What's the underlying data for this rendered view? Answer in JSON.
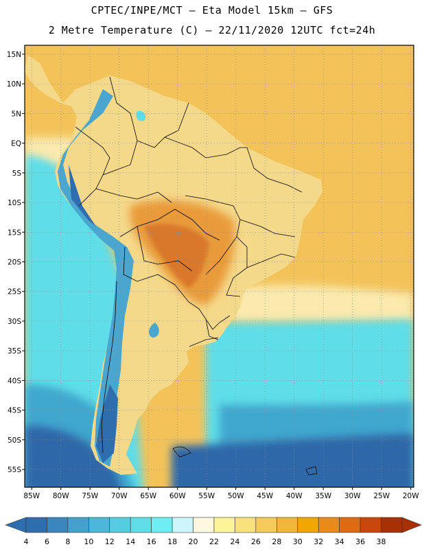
{
  "header": {
    "line1": "CPTEC/INPE/MCT –   Eta Model 15km – GFS",
    "line2": "2 Metre Temperature (C) – 22/11/2020 12UTC fct=24h"
  },
  "map": {
    "lat_ticks": [
      {
        "value": 15,
        "label": "15N"
      },
      {
        "value": 10,
        "label": "10N"
      },
      {
        "value": 5,
        "label": "5N"
      },
      {
        "value": 0,
        "label": "EQ"
      },
      {
        "value": -5,
        "label": "5S"
      },
      {
        "value": -10,
        "label": "10S"
      },
      {
        "value": -15,
        "label": "15S"
      },
      {
        "value": -20,
        "label": "20S"
      },
      {
        "value": -25,
        "label": "25S"
      },
      {
        "value": -30,
        "label": "30S"
      },
      {
        "value": -35,
        "label": "35S"
      },
      {
        "value": -40,
        "label": "40S"
      },
      {
        "value": -45,
        "label": "45S"
      },
      {
        "value": -50,
        "label": "50S"
      },
      {
        "value": -55,
        "label": "55S"
      }
    ],
    "lon_ticks": [
      {
        "value": -85,
        "label": "85W"
      },
      {
        "value": -80,
        "label": "80W"
      },
      {
        "value": -75,
        "label": "75W"
      },
      {
        "value": -70,
        "label": "70W"
      },
      {
        "value": -65,
        "label": "65W"
      },
      {
        "value": -60,
        "label": "60W"
      },
      {
        "value": -55,
        "label": "55W"
      },
      {
        "value": -50,
        "label": "50W"
      },
      {
        "value": -45,
        "label": "45W"
      },
      {
        "value": -40,
        "label": "40W"
      },
      {
        "value": -35,
        "label": "35W"
      },
      {
        "value": -30,
        "label": "30W"
      },
      {
        "value": -25,
        "label": "25W"
      },
      {
        "value": -20,
        "label": "20W"
      }
    ],
    "lat_range": [
      -58,
      16.5
    ],
    "lon_range": [
      -86.2,
      -19.5
    ]
  },
  "colorbar": {
    "levels": [
      "4",
      "6",
      "8",
      "10",
      "12",
      "14",
      "16",
      "18",
      "20",
      "22",
      "24",
      "26",
      "28",
      "30",
      "32",
      "34",
      "36",
      "38"
    ],
    "colors": [
      "#2f6eae",
      "#3a86bd",
      "#43a1cc",
      "#4cb8d9",
      "#55cde0",
      "#5fdde8",
      "#6deef2",
      "#cdf5fb",
      "#fff8df",
      "#fff49a",
      "#fae27a",
      "#f5cb5c",
      "#f0b73b",
      "#f3a600",
      "#ea8a1b",
      "#de6a12",
      "#c9470a",
      "#a83005"
    ]
  },
  "palette": {
    "ocean_warm": "#f3c35a",
    "ocean_mild": "#fbe9ad",
    "ocean_cool": "#5fdde8",
    "ocean_cold": "#40a7cf",
    "ocean_deep": "#2e68a8",
    "land": "#f5d98a",
    "land_hot": "#e99b3a",
    "land_hottest": "#d9782c",
    "andes": "#4aa6cf",
    "andes_high": "#2f6eae",
    "border": "#000000",
    "grid": "#8a8a8a"
  }
}
